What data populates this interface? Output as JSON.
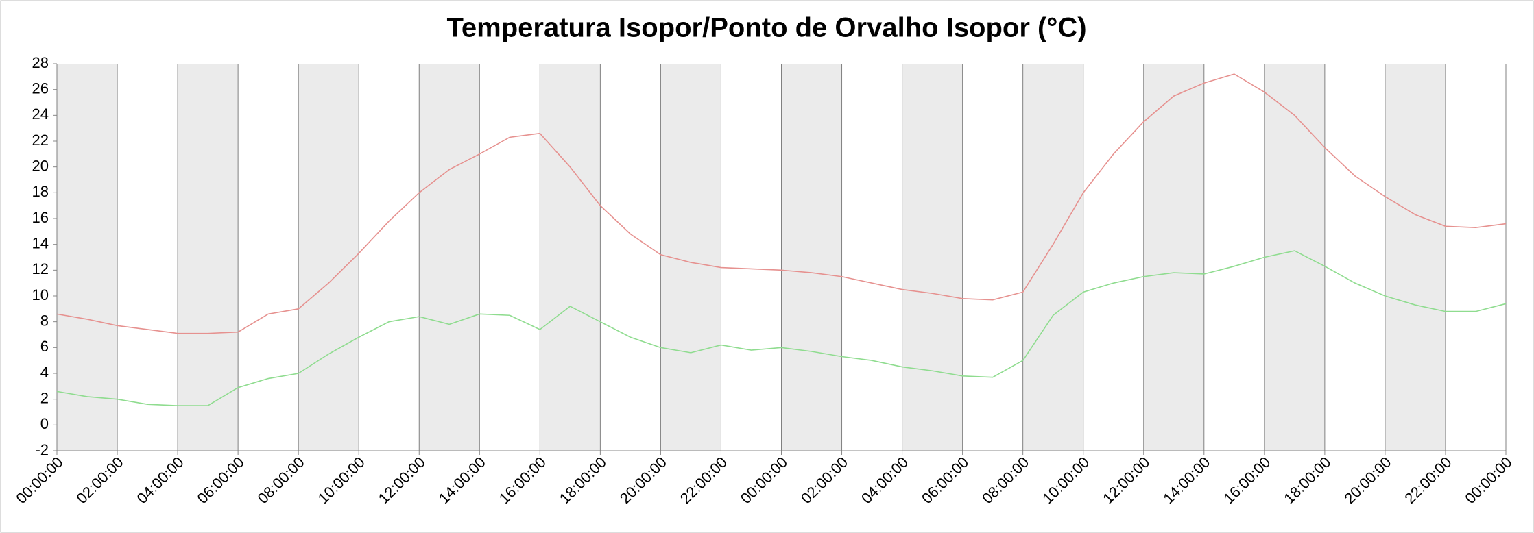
{
  "chart_data": {
    "type": "line",
    "title": "Temperatura Isopor/Ponto de Orvalho Isopor (°C)",
    "x": [
      0,
      1,
      2,
      3,
      4,
      5,
      6,
      7,
      8,
      9,
      10,
      11,
      12,
      13,
      14,
      15,
      16,
      17,
      18,
      19,
      20,
      21,
      22,
      23,
      24,
      25,
      26,
      27,
      28,
      29,
      30,
      31,
      32,
      33,
      34,
      35,
      36,
      37,
      38,
      39,
      40,
      41,
      42,
      43,
      44,
      45,
      46,
      47,
      48
    ],
    "xlim": [
      0,
      48
    ],
    "xticks": [
      {
        "value": 0,
        "label": "00:00:00"
      },
      {
        "value": 2,
        "label": "02:00:00"
      },
      {
        "value": 4,
        "label": "04:00:00"
      },
      {
        "value": 6,
        "label": "06:00:00"
      },
      {
        "value": 8,
        "label": "08:00:00"
      },
      {
        "value": 10,
        "label": "10:00:00"
      },
      {
        "value": 12,
        "label": "12:00:00"
      },
      {
        "value": 14,
        "label": "14:00:00"
      },
      {
        "value": 16,
        "label": "16:00:00"
      },
      {
        "value": 18,
        "label": "18:00:00"
      },
      {
        "value": 20,
        "label": "20:00:00"
      },
      {
        "value": 22,
        "label": "22:00:00"
      },
      {
        "value": 24,
        "label": "00:00:00"
      },
      {
        "value": 26,
        "label": "02:00:00"
      },
      {
        "value": 28,
        "label": "04:00:00"
      },
      {
        "value": 30,
        "label": "06:00:00"
      },
      {
        "value": 32,
        "label": "08:00:00"
      },
      {
        "value": 34,
        "label": "10:00:00"
      },
      {
        "value": 36,
        "label": "12:00:00"
      },
      {
        "value": 38,
        "label": "14:00:00"
      },
      {
        "value": 40,
        "label": "16:00:00"
      },
      {
        "value": 42,
        "label": "18:00:00"
      },
      {
        "value": 44,
        "label": "20:00:00"
      },
      {
        "value": 46,
        "label": "22:00:00"
      },
      {
        "value": 48,
        "label": "00:00:00"
      }
    ],
    "ylim": [
      -2,
      28
    ],
    "yticks": [
      -2,
      0,
      2,
      4,
      6,
      8,
      10,
      12,
      14,
      16,
      18,
      20,
      22,
      24,
      26,
      28
    ],
    "series": [
      {
        "color": "#e6918f",
        "values": [
          8.6,
          8.2,
          7.7,
          7.4,
          7.1,
          7.1,
          7.2,
          8.6,
          9.0,
          11.0,
          13.3,
          15.8,
          18.0,
          19.8,
          21.0,
          22.3,
          22.6,
          20.0,
          17.0,
          14.8,
          13.2,
          12.6,
          12.2,
          12.1,
          12.0,
          11.8,
          11.5,
          11.0,
          10.5,
          10.2,
          9.8,
          9.7,
          10.3,
          14.0,
          18.0,
          21.0,
          23.5,
          25.5,
          26.5,
          27.2,
          25.8,
          24.0,
          21.5,
          19.3,
          17.7,
          16.3,
          15.4,
          15.3,
          15.6
        ]
      },
      {
        "color": "#8fdc8f",
        "values": [
          2.6,
          2.2,
          2.0,
          1.6,
          1.5,
          1.5,
          2.9,
          3.6,
          4.0,
          5.5,
          6.8,
          8.0,
          8.4,
          7.8,
          8.6,
          8.5,
          7.4,
          9.2,
          8.0,
          6.8,
          6.0,
          5.6,
          6.2,
          5.8,
          6.0,
          5.7,
          5.3,
          5.0,
          4.5,
          4.2,
          3.8,
          3.7,
          5.0,
          8.5,
          10.3,
          11.0,
          11.5,
          11.8,
          11.7,
          12.3,
          13.0,
          13.5,
          12.3,
          11.0,
          10.0,
          9.3,
          8.8,
          8.8,
          9.4
        ]
      }
    ]
  }
}
